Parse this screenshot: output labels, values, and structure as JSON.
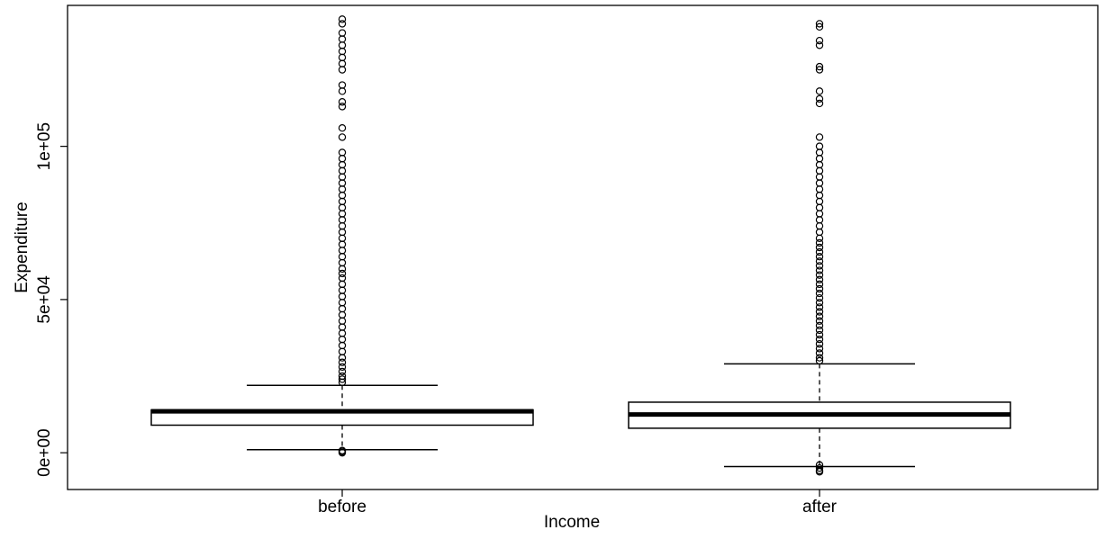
{
  "chart_data": {
    "type": "boxplot",
    "title": "",
    "xlabel": "Income",
    "ylabel": "Expenditure",
    "ylim": [
      -12000,
      146000
    ],
    "yticks": [
      0,
      50000,
      100000
    ],
    "ytick_labels": [
      "0e+00",
      "5e+04",
      "1e+05"
    ],
    "grid": false,
    "categories": [
      "before",
      "after"
    ],
    "boxes": [
      {
        "category": "before",
        "whisker_low": 1000,
        "q1": 9000,
        "median": 13500,
        "q3": 14000,
        "whisker_high": 22000,
        "outliers": [
          0,
          400,
          700,
          23000,
          24000,
          25000,
          26500,
          28000,
          29500,
          31000,
          33000,
          35000,
          37000,
          39000,
          41000,
          43000,
          45000,
          47000,
          49000,
          51000,
          53000,
          55000,
          57000,
          58500,
          60000,
          62000,
          64000,
          66000,
          68000,
          70000,
          72000,
          74000,
          76000,
          78000,
          80000,
          82000,
          84000,
          86000,
          88000,
          90000,
          92000,
          94000,
          96000,
          98000,
          103000,
          106000,
          113000,
          114500,
          118000,
          120000,
          125000,
          127000,
          129000,
          131000,
          133000,
          135000,
          137000,
          140000,
          141500
        ]
      },
      {
        "category": "after",
        "whisker_low": -4500,
        "q1": 8000,
        "median": 12500,
        "q3": 16500,
        "whisker_high": 29000,
        "outliers": [
          -4000,
          -5000,
          -5800,
          -6200,
          30000,
          31000,
          32500,
          34000,
          35500,
          37000,
          38500,
          40000,
          41500,
          43000,
          44500,
          46000,
          47500,
          49000,
          50500,
          52000,
          53500,
          55000,
          56500,
          58000,
          59500,
          61000,
          62500,
          64000,
          65500,
          67000,
          68500,
          70000,
          72000,
          74000,
          76000,
          78000,
          80000,
          82000,
          84000,
          86000,
          88000,
          90000,
          92000,
          94000,
          96000,
          98000,
          100000,
          103000,
          114000,
          115500,
          118000,
          125000,
          126000,
          133000,
          134500,
          139000,
          140000
        ]
      }
    ]
  }
}
